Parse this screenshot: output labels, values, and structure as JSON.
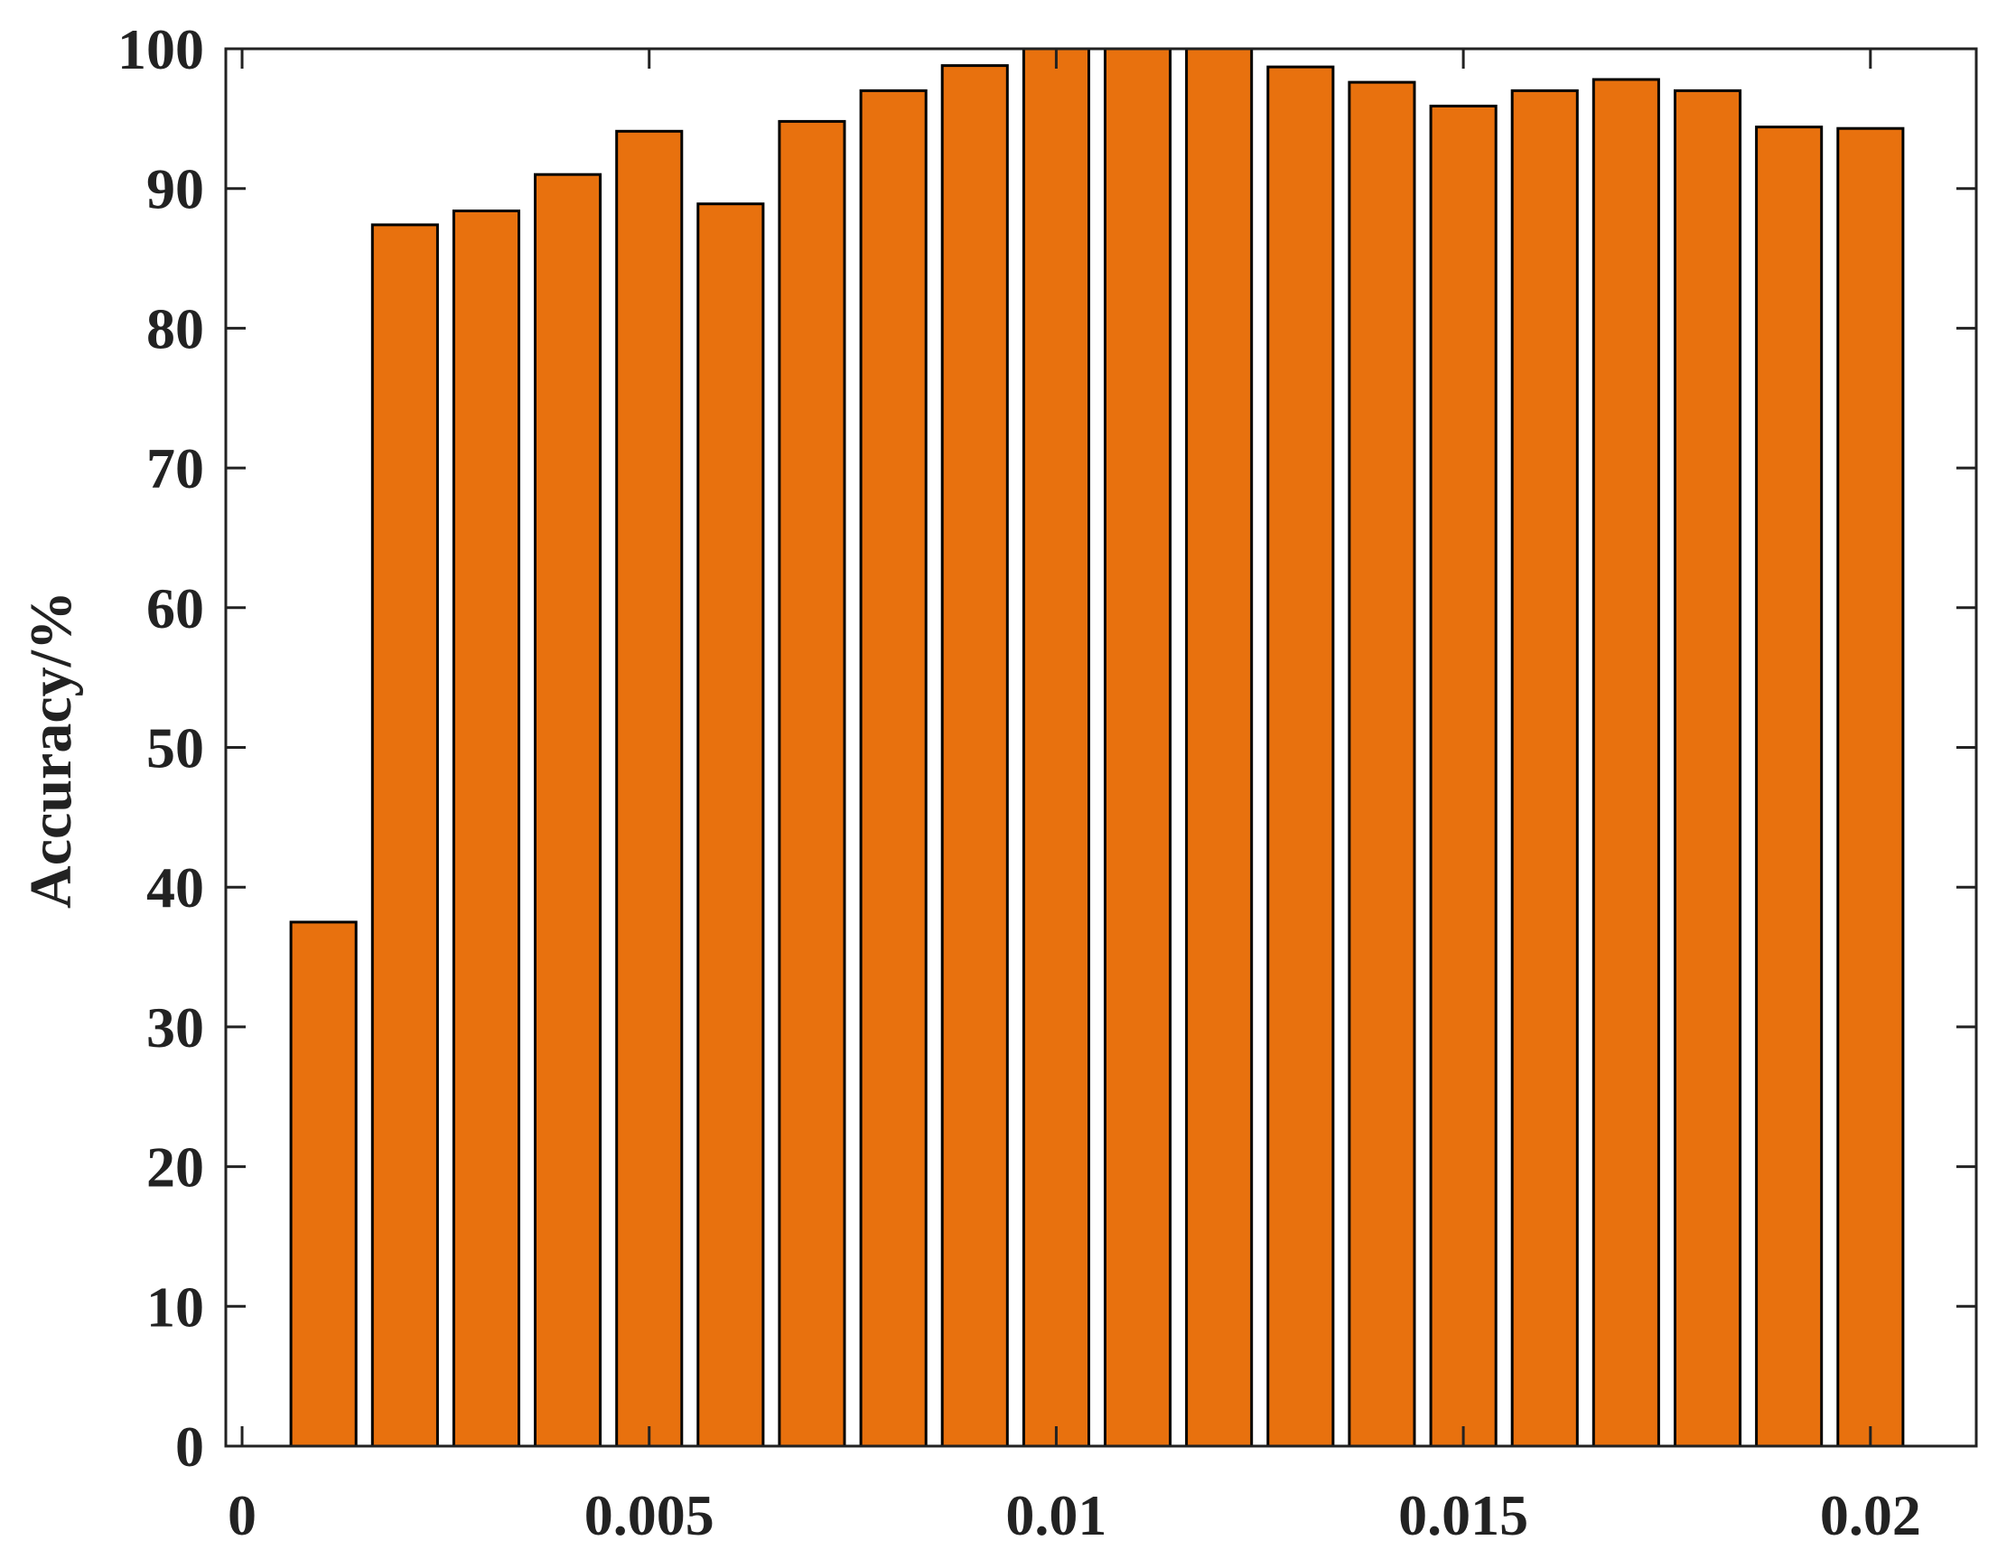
{
  "chart_data": {
    "type": "bar",
    "title": "",
    "xlabel": "",
    "ylabel": "Accuracy/%",
    "x": [
      0.001,
      0.002,
      0.003,
      0.004,
      0.005,
      0.006,
      0.007,
      0.008,
      0.009,
      0.01,
      0.011,
      0.012,
      0.013,
      0.014,
      0.015,
      0.016,
      0.017,
      0.018,
      0.019,
      0.02
    ],
    "values": [
      37.5,
      87.4,
      88.4,
      91.0,
      94.1,
      88.9,
      94.8,
      97.0,
      98.8,
      100.0,
      100.0,
      100.0,
      98.7,
      97.6,
      95.9,
      97.0,
      97.8,
      97.0,
      94.4,
      94.3
    ],
    "xlim": [
      -0.0002,
      0.0213
    ],
    "ylim": [
      0,
      100
    ],
    "xticks": [
      0,
      0.005,
      0.01,
      0.015,
      0.02
    ],
    "xtick_labels": [
      "0",
      "0.005",
      "0.01",
      "0.015",
      "0.02"
    ],
    "yticks": [
      0,
      10,
      20,
      30,
      40,
      50,
      60,
      70,
      80,
      90,
      100
    ],
    "ytick_labels": [
      "0",
      "10",
      "20",
      "30",
      "40",
      "50",
      "60",
      "70",
      "80",
      "90",
      "100"
    ],
    "grid": false,
    "bar_color": "#E8710E",
    "edge_color": "#000000",
    "axes_color": "#222222"
  }
}
